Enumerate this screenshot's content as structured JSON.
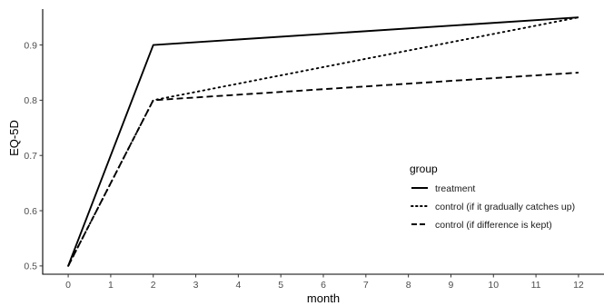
{
  "chart_data": {
    "type": "line",
    "xlabel": "month",
    "ylabel": "EQ-5D",
    "x_ticks": [
      "0",
      "1",
      "2",
      "3",
      "4",
      "5",
      "6",
      "7",
      "8",
      "9",
      "10",
      "11",
      "12"
    ],
    "y_ticks": [
      "0.5",
      "0.6",
      "0.7",
      "0.8",
      "0.9"
    ],
    "xlim": [
      -0.6,
      12.6
    ],
    "ylim": [
      0.485,
      0.965
    ],
    "grid": false,
    "legend": {
      "title": "group",
      "placement": "right",
      "entries": [
        {
          "label": "treatment",
          "dash": "solid"
        },
        {
          "label": "control (if it gradually catches up)",
          "dash": "dotted"
        },
        {
          "label": "control (if difference is kept)",
          "dash": "dashed"
        }
      ]
    },
    "series": [
      {
        "name": "treatment",
        "style": "solid",
        "color": "#000000",
        "points": [
          [
            0,
            0.5
          ],
          [
            2,
            0.9
          ],
          [
            12,
            0.95
          ]
        ]
      },
      {
        "name": "control (if it gradually catches up)",
        "style": "dotted",
        "color": "#000000",
        "points": [
          [
            0,
            0.5
          ],
          [
            2,
            0.8
          ],
          [
            12,
            0.95
          ]
        ]
      },
      {
        "name": "control (if difference is kept)",
        "style": "dashed",
        "color": "#000000",
        "points": [
          [
            0,
            0.5
          ],
          [
            2,
            0.8
          ],
          [
            12,
            0.85
          ]
        ]
      }
    ]
  }
}
